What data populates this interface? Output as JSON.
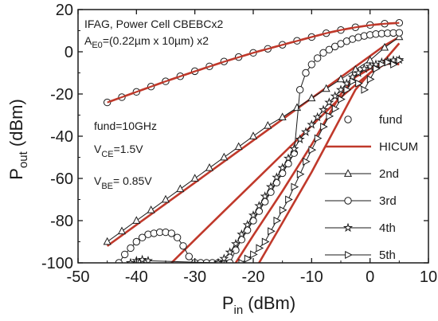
{
  "chart_data": {
    "type": "line",
    "xlabel": {
      "main": "P",
      "sub": "in",
      "unit": " (dBm)"
    },
    "ylabel": {
      "main": "P",
      "sub": "out",
      "unit": " (dBm)"
    },
    "xlim": [
      -50,
      10
    ],
    "ylim": [
      -100,
      20
    ],
    "xticks": [
      "-50",
      "-40",
      "-30",
      "-20",
      "-10",
      "0",
      "10"
    ],
    "yticks": [
      "-100",
      "-80",
      "-60",
      "-40",
      "-20",
      "0",
      "20"
    ],
    "xtick_values": [
      -50,
      -40,
      -30,
      -20,
      -10,
      0,
      10
    ],
    "ytick_values": [
      -100,
      -80,
      -60,
      -40,
      -20,
      0,
      20
    ],
    "grid": false,
    "legend_placement": "right",
    "annotations": {
      "title": "IFAG,  Power Cell CBEBCx2",
      "ae0_main": "A",
      "ae0_sub": "E0",
      "ae0_rest": "=(0.22µm x 10µm) x2",
      "fund_freq": "fund=10GHz",
      "vce_main": "V",
      "vce_sub": "CE",
      "vce_rest": "=1.5V",
      "vbe_main": "V",
      "vbe_sub": "BE",
      "vbe_rest": "= 0.85V"
    },
    "colors": {
      "measured": "#1a1a1a",
      "model": "#c0392b"
    },
    "series": [
      {
        "name": "fund",
        "marker": "circle",
        "kind": "measured",
        "x": [
          -45,
          -42.5,
          -40,
          -37.5,
          -35,
          -32.5,
          -30,
          -27.5,
          -25,
          -22.5,
          -20,
          -17.5,
          -15,
          -12.5,
          -10,
          -7.5,
          -5,
          -2.5,
          0,
          2.5,
          5
        ],
        "y": [
          -24,
          -21.5,
          -19,
          -16.5,
          -14,
          -11.6,
          -9.2,
          -6.9,
          -4.6,
          -2.5,
          -0.5,
          1.4,
          3.3,
          5.2,
          7,
          8.8,
          10.3,
          11.6,
          12.7,
          13.3,
          13.7
        ]
      },
      {
        "name": "HICUM",
        "marker": "none",
        "kind": "model",
        "x": [
          -45,
          -40,
          -35,
          -30,
          -25,
          -20,
          -15,
          -10,
          -7.5,
          -5,
          -2.5,
          0,
          2.5,
          5
        ],
        "y": [
          -24,
          -19,
          -14,
          -9.3,
          -4.7,
          -0.5,
          3.3,
          7,
          8.8,
          10.3,
          11.6,
          12.6,
          13.3,
          13.7
        ]
      },
      {
        "name": "2nd",
        "marker": "triangle-up",
        "kind": "measured",
        "x": [
          -45,
          -42.5,
          -40,
          -37.5,
          -35,
          -32.5,
          -30,
          -27.5,
          -25,
          -22.5,
          -20,
          -17.5,
          -15,
          -12.5,
          -10,
          -7.5,
          -5,
          -2.5,
          0,
          2.5,
          5
        ],
        "y": [
          -90,
          -85,
          -80,
          -75,
          -70,
          -65,
          -60,
          -55,
          -50,
          -45,
          -40,
          -35,
          -31,
          -26.5,
          -22,
          -17.5,
          -13,
          -8.5,
          -4,
          2,
          7
        ]
      },
      {
        "name": "2nd HICUM",
        "marker": "none",
        "kind": "model",
        "x": [
          -45,
          -40,
          -35,
          -30,
          -25,
          -20,
          -15,
          -10,
          -5,
          0,
          2.5,
          5
        ],
        "y": [
          -92,
          -82,
          -72,
          -62,
          -52,
          -42,
          -32,
          -22,
          -12,
          -2,
          3,
          7
        ]
      },
      {
        "name": "3rd",
        "marker": "circle",
        "kind": "measured",
        "x": [
          -43,
          -42,
          -41,
          -40,
          -39,
          -38,
          -37,
          -36,
          -35,
          -34,
          -33,
          -32,
          -31,
          -30,
          -29,
          -28,
          -27,
          -26,
          -25,
          -24,
          -23,
          -22,
          -21,
          -20,
          -19,
          -18,
          -17,
          -16,
          -15,
          -14,
          -13,
          -12,
          -11,
          -10,
          -9,
          -8,
          -7,
          -6,
          -5,
          -4,
          -3,
          -2,
          -1,
          0,
          1,
          2,
          3,
          4,
          5
        ],
        "y": [
          -100,
          -96,
          -93,
          -90,
          -88,
          -86.5,
          -86,
          -85.5,
          -85.5,
          -86,
          -88,
          -92,
          -97,
          -100,
          -100,
          -100,
          -100,
          -100,
          -100,
          -100,
          -94,
          -89,
          -84.5,
          -80,
          -75.5,
          -71,
          -66.5,
          -62,
          -57.5,
          -53,
          -48,
          -18,
          -10,
          -6,
          -3,
          -0.5,
          1,
          2.5,
          3.8,
          5,
          6,
          6.8,
          7.5,
          8,
          8.4,
          8.6,
          8.8,
          8.9,
          9
        ]
      },
      {
        "name": "3rd HICUM",
        "marker": "none",
        "kind": "model",
        "x": [
          -34,
          -30,
          -25,
          -20,
          -15,
          -10,
          -5,
          0,
          2.5,
          5
        ],
        "y": [
          -100,
          -89,
          -75.5,
          -62,
          -48.5,
          -35,
          -21.5,
          -10,
          -4,
          4
        ]
      },
      {
        "name": "4th",
        "marker": "star",
        "kind": "measured",
        "x": [
          -41,
          -40,
          -39,
          -38,
          -26,
          -25,
          -24,
          -23,
          -22,
          -21,
          -20,
          -19,
          -18,
          -17,
          -16,
          -15,
          -14,
          -13,
          -12,
          -11,
          -10,
          -9,
          -8,
          -7,
          -6,
          -5,
          -4,
          -3,
          -2,
          -1,
          0,
          1,
          2,
          3,
          4,
          5
        ],
        "y": [
          -100,
          -99,
          -98.5,
          -99,
          -100,
          -98,
          -95,
          -91,
          -86.5,
          -82,
          -77.5,
          -73,
          -68.5,
          -64,
          -59.5,
          -55,
          -50.5,
          -46,
          -41.5,
          -38,
          -34.5,
          -31,
          -27.5,
          -24,
          -21,
          -18,
          -15,
          -12,
          -10,
          -8,
          -7,
          -6,
          -5,
          -4.5,
          -4,
          -3.8
        ]
      },
      {
        "name": "4th HICUM",
        "marker": "none",
        "kind": "model",
        "x": [
          -23,
          -20,
          -15,
          -10,
          -7.5,
          -5,
          -2.5,
          0,
          2.5,
          5
        ],
        "y": [
          -100,
          -87,
          -66,
          -44,
          -32,
          -20,
          -12,
          -8,
          -5,
          -6
        ]
      },
      {
        "name": "5th",
        "marker": "triangle-right",
        "kind": "measured",
        "x": [
          -22,
          -21,
          -20,
          -19,
          -18,
          -17,
          -16,
          -15,
          -14,
          -13,
          -12,
          -11,
          -10,
          -9,
          -8,
          -7,
          -6,
          -5,
          -4,
          -3,
          -2,
          -1,
          0,
          1,
          2,
          3,
          4,
          5
        ],
        "y": [
          -100,
          -98,
          -96,
          -93,
          -90,
          -85,
          -80,
          -75,
          -70,
          -64,
          -58,
          -52,
          -46.5,
          -41,
          -35.5,
          -30.5,
          -27,
          -22.5,
          -18,
          -14,
          -15,
          -18,
          -13,
          -8,
          -6,
          -5,
          -6,
          -4
        ]
      },
      {
        "name": "5th HICUM",
        "marker": "none",
        "kind": "model",
        "x": [
          -19,
          -15,
          -10,
          -7.5,
          -5,
          -2.5,
          0,
          2.5,
          5
        ],
        "y": [
          -100,
          -81,
          -57,
          -44,
          -31,
          -18,
          -10,
          -6,
          -5
        ]
      }
    ],
    "legend": [
      {
        "label": "fund",
        "marker": "circle",
        "line": false
      },
      {
        "label": "HICUM",
        "marker": "none",
        "line": true,
        "model": true
      },
      {
        "label": "2nd",
        "marker": "triangle-up",
        "line": true
      },
      {
        "label": "3rd",
        "marker": "circle",
        "line": true
      },
      {
        "label": "4th",
        "marker": "star",
        "line": true
      },
      {
        "label": "5th",
        "marker": "triangle-right",
        "line": true
      }
    ]
  }
}
